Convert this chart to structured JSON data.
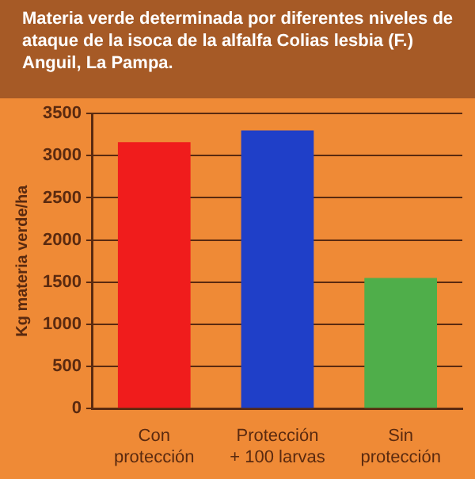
{
  "chart_data": {
    "type": "bar",
    "title": "Materia verde determinada por diferentes niveles de ataque de la isoca de la alfalfa Colias lesbia (F.) Anguil, La Pampa.",
    "ylabel": "Kg materia verde/ha",
    "categories": [
      "Con protección",
      "Protección + 100 larvas",
      "Sin protección"
    ],
    "values": [
      3160,
      3300,
      1550
    ],
    "colors": [
      "#f01c1c",
      "#1f3fc8",
      "#4fae4a"
    ],
    "ylim": [
      0,
      3500
    ],
    "yticks": [
      0,
      500,
      1000,
      1500,
      2000,
      2500,
      3000,
      3500
    ],
    "grid": "y",
    "legend": false
  }
}
